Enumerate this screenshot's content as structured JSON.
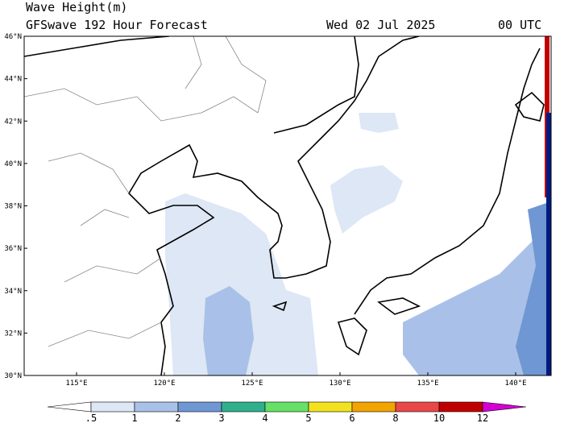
{
  "header": {
    "title": "Wave Height(m)",
    "subtitle": "GFSwave 192 Hour Forecast",
    "date": "Wed 02 Jul 2025",
    "time": "00 UTC"
  },
  "map": {
    "lat_labels": [
      "46°N",
      "44°N",
      "42°N",
      "40°N",
      "38°N",
      "36°N",
      "34°N",
      "32°N",
      "30°N"
    ],
    "lon_labels": [
      "115°E",
      "120°E",
      "125°E",
      "130°E",
      "135°E",
      "140°E"
    ]
  },
  "colorbar": {
    "labels": [
      ".5",
      "1",
      "2",
      "3",
      "4",
      "5",
      "6",
      "8",
      "10",
      "12"
    ],
    "colors": [
      "#ffffff",
      "#dde7f5",
      "#a9c1e8",
      "#6f97d3",
      "#2fb08c",
      "#66e066",
      "#f2e21e",
      "#f2a400",
      "#e94848",
      "#c00000",
      "#d400d4"
    ]
  }
}
